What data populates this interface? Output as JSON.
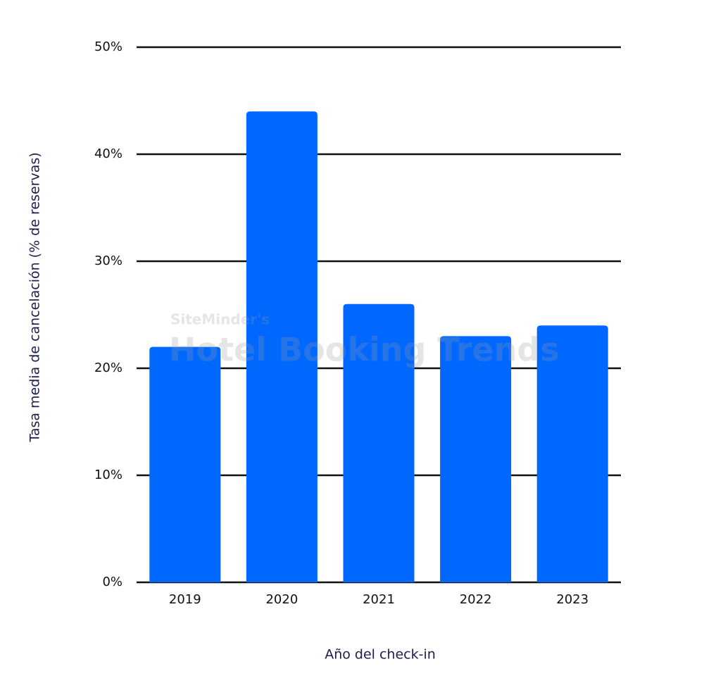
{
  "chart_data": {
    "type": "bar",
    "x_label": "Año del check-in",
    "y_label": "Tasa media de cancelación (% de reservas)",
    "watermark": [
      "SiteMinder's",
      "Hotel Booking Trends"
    ],
    "categories": [
      "2019",
      "2020",
      "2021",
      "2022",
      "2023"
    ],
    "values": [
      22,
      44,
      26,
      23,
      24
    ],
    "color": "#0068ff",
    "ylim": [
      0,
      50
    ],
    "yticks": [
      {
        "value": 0,
        "label": "0%"
      },
      {
        "value": 10,
        "label": "10%"
      },
      {
        "value": 20,
        "label": "20%"
      },
      {
        "value": 30,
        "label": "30%"
      },
      {
        "value": 40,
        "label": "40%"
      },
      {
        "value": 50,
        "label": "50%"
      }
    ],
    "grid": true
  }
}
